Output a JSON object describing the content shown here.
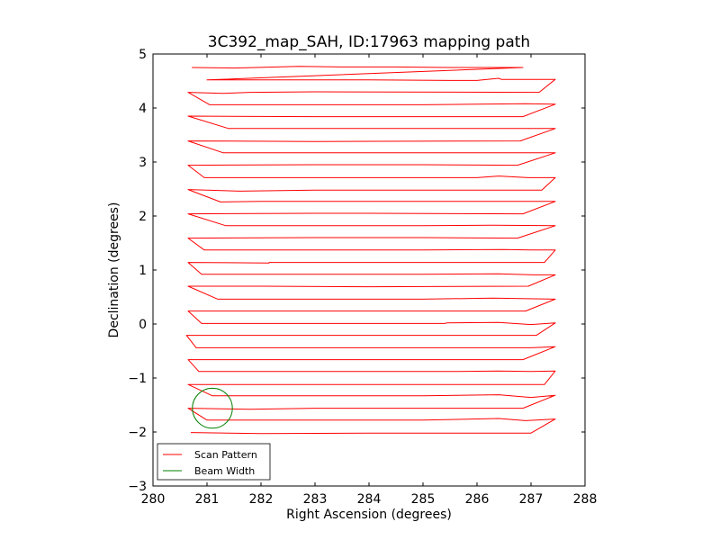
{
  "chart_data": {
    "type": "line",
    "title": "3C392_map_SAH, ID:17963 mapping path",
    "xlabel": "Right Ascension (degrees)",
    "ylabel": "Declination (degrees)",
    "xlim": [
      280,
      288
    ],
    "ylim": [
      -3,
      5
    ],
    "xticks": [
      "280",
      "281",
      "282",
      "283",
      "284",
      "285",
      "286",
      "287",
      "288"
    ],
    "yticks": [
      "−3",
      "−2",
      "−1",
      "0",
      "1",
      "2",
      "3",
      "4",
      "5"
    ],
    "grid": false,
    "legend_position": "lower-left",
    "series": [
      {
        "name": "Scan Pattern",
        "color": "#ff0000",
        "x": [
          280.72,
          281.5,
          282.7,
          283.5,
          284.5,
          285.5,
          286.3,
          286.85,
          286.85,
          281.0,
          282.0,
          283.0,
          284.0,
          285.5,
          286.0,
          286.4,
          286.45,
          287.45,
          287.45,
          287.15,
          283.0,
          281.8,
          281.3,
          280.65,
          280.65,
          281.05,
          282.0,
          283.0,
          284.0,
          285.0,
          286.0,
          286.9,
          287.45,
          287.45,
          286.85,
          283.0,
          280.65,
          280.65,
          281.4,
          283.0,
          285.0,
          286.9,
          287.45,
          287.45,
          286.8,
          283.0,
          280.65,
          280.65,
          281.3,
          283.0,
          285.0,
          286.9,
          287.45,
          287.45,
          286.75,
          285.0,
          283.0,
          280.65,
          280.65,
          280.95,
          283.0,
          286.0,
          286.4,
          286.95,
          287.45,
          287.45,
          287.2,
          283.0,
          281.6,
          280.65,
          280.65,
          281.25,
          282.0,
          283.0,
          285.0,
          286.9,
          287.45,
          287.45,
          286.85,
          284.0,
          283.0,
          280.65,
          280.65,
          281.35,
          283.0,
          285.0,
          286.3,
          287.45,
          287.45,
          286.75,
          285.0,
          283.0,
          280.65,
          280.65,
          280.95,
          283.0,
          285.0,
          286.5,
          287.0,
          287.45,
          287.45,
          287.25,
          282.15,
          282.15,
          280.65,
          280.65,
          280.9,
          283.0,
          285.0,
          286.4,
          287.05,
          287.45,
          287.45,
          286.95,
          284.0,
          282.0,
          280.65,
          280.65,
          281.2,
          283.0,
          285.0,
          286.3,
          287.45,
          287.45,
          286.9,
          284.5,
          283.0,
          280.65,
          280.65,
          280.9,
          283.0,
          285.4,
          285.45,
          286.4,
          287.0,
          287.45,
          287.45,
          287.1,
          284.0,
          281.0,
          280.62,
          280.62,
          280.8,
          282.5,
          284.5,
          286.4,
          287.0,
          287.45,
          287.45,
          286.85,
          284.0,
          282.0,
          280.65,
          280.65,
          280.85,
          282.5,
          285.5,
          286.4,
          287.0,
          287.45,
          287.45,
          287.25,
          284.0,
          282.5,
          280.65,
          280.65,
          281.1,
          283.0,
          285.0,
          286.4,
          287.0,
          287.45,
          287.45,
          286.85,
          285.0,
          283.0,
          281.8,
          280.65,
          280.65,
          281.0,
          283.0,
          285.0,
          286.4,
          286.9,
          287.45,
          287.45,
          287.0,
          286.0,
          284.0,
          282.0,
          280.7
        ],
        "y": [
          4.75,
          4.74,
          4.77,
          4.76,
          4.76,
          4.75,
          4.75,
          4.75,
          4.75,
          4.52,
          4.52,
          4.52,
          4.52,
          4.51,
          4.51,
          4.55,
          4.53,
          4.53,
          4.53,
          4.29,
          4.3,
          4.29,
          4.27,
          4.29,
          4.29,
          4.06,
          4.06,
          4.06,
          4.06,
          4.06,
          4.07,
          4.08,
          4.07,
          4.07,
          3.84,
          3.84,
          3.85,
          3.85,
          3.62,
          3.62,
          3.62,
          3.62,
          3.62,
          3.62,
          3.39,
          3.38,
          3.39,
          3.39,
          3.17,
          3.17,
          3.17,
          3.17,
          3.17,
          3.17,
          2.94,
          2.95,
          2.95,
          2.94,
          2.94,
          2.71,
          2.71,
          2.71,
          2.74,
          2.71,
          2.71,
          2.71,
          2.48,
          2.48,
          2.46,
          2.49,
          2.49,
          2.26,
          2.27,
          2.27,
          2.27,
          2.27,
          2.27,
          2.27,
          2.04,
          2.05,
          2.05,
          2.04,
          2.04,
          1.82,
          1.82,
          1.82,
          1.83,
          1.82,
          1.82,
          1.59,
          1.6,
          1.6,
          1.59,
          1.59,
          1.37,
          1.37,
          1.37,
          1.38,
          1.37,
          1.37,
          1.37,
          1.14,
          1.14,
          1.13,
          1.14,
          1.14,
          0.92,
          0.92,
          0.92,
          0.93,
          0.91,
          0.91,
          0.91,
          0.7,
          0.69,
          0.7,
          0.7,
          0.7,
          0.46,
          0.46,
          0.46,
          0.48,
          0.46,
          0.46,
          0.24,
          0.24,
          0.24,
          0.24,
          0.24,
          0.01,
          0.01,
          0.01,
          0.02,
          0.03,
          -0.01,
          0.02,
          0.02,
          -0.21,
          -0.21,
          -0.21,
          -0.21,
          -0.21,
          -0.44,
          -0.44,
          -0.44,
          -0.44,
          -0.44,
          -0.42,
          -0.42,
          -0.66,
          -0.66,
          -0.66,
          -0.66,
          -0.66,
          -0.88,
          -0.88,
          -0.88,
          -0.87,
          -0.88,
          -0.87,
          -0.87,
          -1.12,
          -1.12,
          -1.12,
          -1.12,
          -1.12,
          -1.33,
          -1.33,
          -1.33,
          -1.31,
          -1.36,
          -1.32,
          -1.32,
          -1.56,
          -1.56,
          -1.56,
          -1.58,
          -1.56,
          -1.56,
          -1.78,
          -1.78,
          -1.78,
          -1.75,
          -1.79,
          -1.76,
          -1.76,
          -2.02,
          -2.02,
          -2.02,
          -2.03,
          -2.01
        ]
      },
      {
        "name": "Beam Width",
        "color": "#008000",
        "type": "circle",
        "center": [
          281.1,
          -1.56
        ],
        "radius": 0.37
      }
    ]
  }
}
